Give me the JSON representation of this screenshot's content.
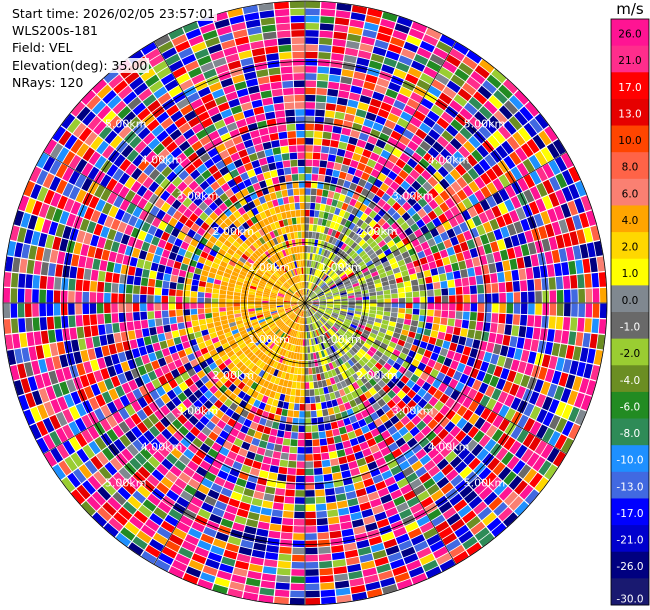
{
  "header": {
    "start_time": "Start time: 2026/02/05 23:57:01",
    "site": "WLS200s-181",
    "field": "Field: VEL",
    "elevation": "Elevation(deg): 35.00",
    "nrays": "NRays: 120"
  },
  "colorbar": {
    "unit": "m/s",
    "ticks": [
      "26.0",
      "21.0",
      "17.0",
      "13.0",
      "10.0",
      "8.0",
      "6.0",
      "4.0",
      "2.0",
      "1.0",
      "0.0",
      "-1.0",
      "-2.0",
      "-4.0",
      "-6.0",
      "-8.0",
      "-10.0",
      "-13.0",
      "-17.0",
      "-21.0",
      "-26.0",
      "-30.0"
    ],
    "colors": [
      "#ff1493",
      "#ff2d8c",
      "#ff0000",
      "#e60000",
      "#ff4500",
      "#ff6347",
      "#fa8072",
      "#ffa500",
      "#ffd700",
      "#ffff00",
      "#808890",
      "#696969",
      "#9acd32",
      "#6b8e23",
      "#228b22",
      "#2e8b57",
      "#1e90ff",
      "#4169e1",
      "#0000ff",
      "#0000cd",
      "#000080",
      "#191970"
    ]
  },
  "chart_data": {
    "type": "heatmap",
    "title": "",
    "field": "VEL",
    "units": "m/s",
    "projection": "polar PPI",
    "elevation_deg": 35.0,
    "n_rays": 120,
    "range_rings_km": [
      "1.00km",
      "2.00km",
      "3.00km",
      "4.00km",
      "5.00km"
    ],
    "max_range_km": 5.0,
    "value_range": [
      -30.0,
      30.0
    ],
    "pattern": {
      "inner_region_km": 2.0,
      "west_half_inner": "positive (yellow, ~1-4 m/s)",
      "east_half_inner": "negative (olive/green, ~-1 to -2 m/s) and gray near 0",
      "outer_region": "noise, all colors"
    }
  }
}
